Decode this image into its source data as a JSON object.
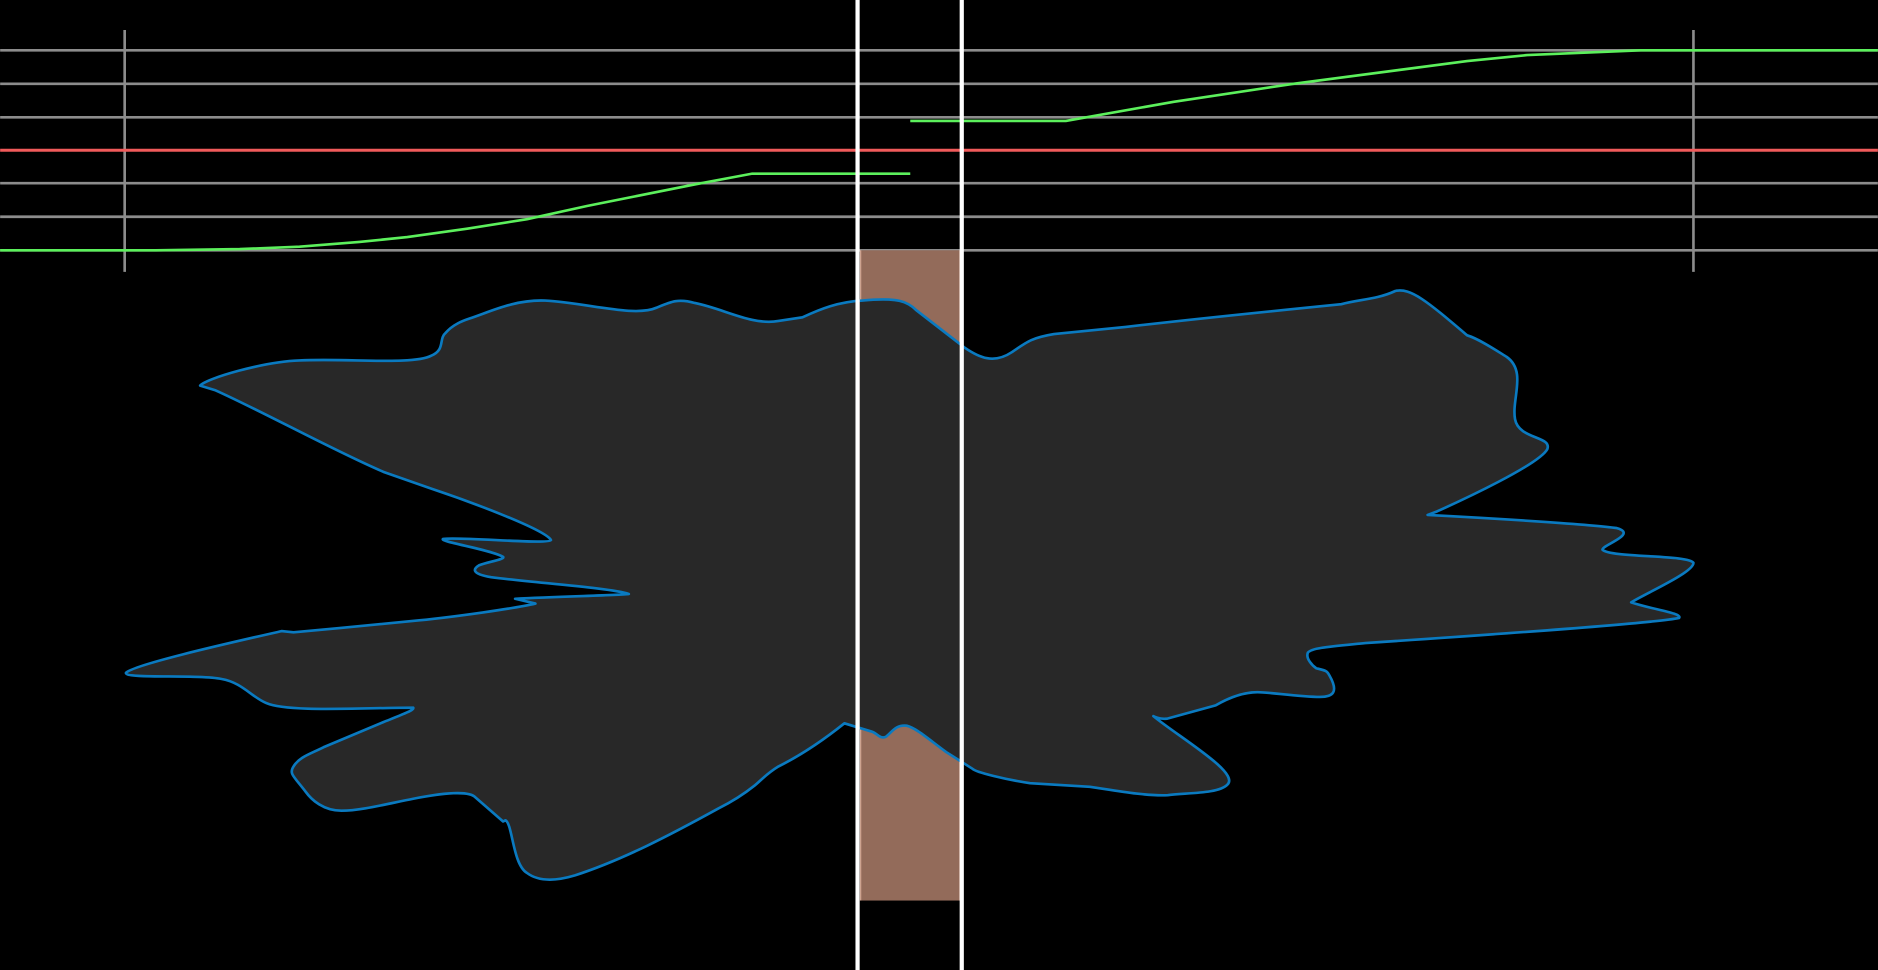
{
  "colors": {
    "background": "#000000",
    "grid_line": "#8c8c8c",
    "reference_line": "#f05a5a",
    "curve": "#5cf05c",
    "marker_line": "#ffffff",
    "selection_fill": "#936b5a",
    "selection_edge": "#f5c8b4",
    "shape_fill": "#282828",
    "shape_stroke": "#0a7ac0"
  },
  "icons": {
    "selection": "selection-region",
    "shape": "outline-shape"
  }
}
